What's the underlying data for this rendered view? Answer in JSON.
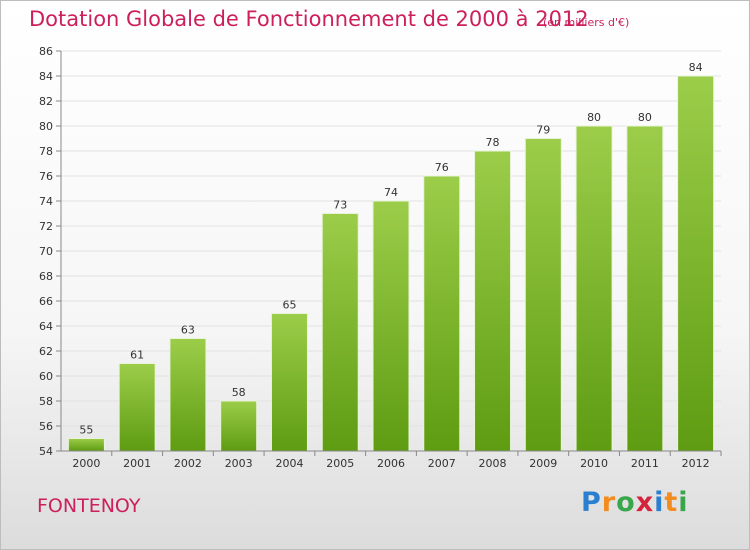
{
  "header": {
    "title": "Dotation Globale de Fonctionnement de 2000 à 2012",
    "subtitle": "(en milliers d'€)"
  },
  "footer": {
    "region": "FONTENOY",
    "logo_text": "Proxiti"
  },
  "colors": {
    "title": "#cc1f5c",
    "bar_top": "#9ccd4a",
    "bar_bottom": "#5e9c12"
  },
  "chart_data": {
    "type": "bar",
    "categories": [
      "2000",
      "2001",
      "2002",
      "2003",
      "2004",
      "2005",
      "2006",
      "2007",
      "2008",
      "2009",
      "2010",
      "2011",
      "2012"
    ],
    "values": [
      55,
      61,
      63,
      58,
      65,
      73,
      74,
      76,
      78,
      79,
      80,
      80,
      84
    ],
    "ylim": [
      54,
      86
    ],
    "yticks": [
      54,
      56,
      58,
      60,
      62,
      64,
      66,
      68,
      70,
      72,
      74,
      76,
      78,
      80,
      82,
      84,
      86
    ],
    "grid": true,
    "data_labels": true
  }
}
